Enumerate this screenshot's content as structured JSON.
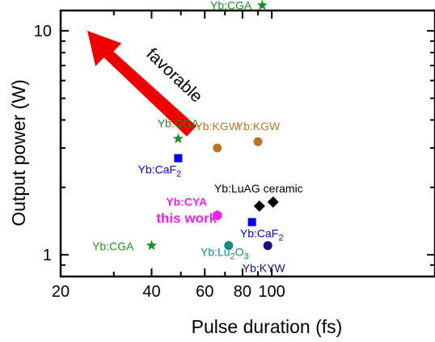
{
  "chart_data": {
    "type": "scatter",
    "xlabel": "Pulse duration (fs)",
    "ylabel": "Output power (W)",
    "xscale": "log",
    "yscale": "log",
    "xlim": [
      20,
      105
    ],
    "ylim": [
      0.8,
      13.5
    ],
    "xticks": [
      "20",
      "40",
      "60",
      "80",
      "100"
    ],
    "yticks": [
      "1",
      "10"
    ],
    "annotation": {
      "text": "favorable"
    },
    "points": [
      {
        "label": "Yb:CGA",
        "sub": "",
        "x": 40,
        "y": 1.1,
        "marker": "star",
        "color": "#1f8f1f"
      },
      {
        "label": "Yb:CGA",
        "sub": "",
        "x": 49,
        "y": 3.3,
        "marker": "star",
        "color": "#1f8f1f"
      },
      {
        "label": "Yb:CGA",
        "sub": "",
        "x": 93,
        "y": 13.0,
        "marker": "star",
        "color": "#1f8f1f"
      },
      {
        "label": "Yb:CaF",
        "sub": "2",
        "x": 49,
        "y": 2.7,
        "marker": "square",
        "color": "#0000ee"
      },
      {
        "label": "Yb:CaF",
        "sub": "2",
        "x": 86,
        "y": 1.4,
        "marker": "square",
        "color": "#0000ee"
      },
      {
        "label": "Yb:KGW",
        "sub": "",
        "x": 66,
        "y": 3.0,
        "marker": "circle",
        "color": "#b8762a"
      },
      {
        "label": "Yb:KGW",
        "sub": "",
        "x": 90,
        "y": 3.2,
        "marker": "circle",
        "color": "#b8762a"
      },
      {
        "label": "Yb:Lu",
        "sub": "2",
        "x": 72,
        "y": 1.1,
        "marker": "circle",
        "color": "#128a8a"
      },
      {
        "label": "Yb:KYW",
        "sub": "",
        "x": 97,
        "y": 1.1,
        "marker": "circle",
        "color": "#12127a"
      },
      {
        "label": "Yb:LuAG ceramic",
        "sub": "",
        "x": 91,
        "y": 1.65,
        "marker": "diamond",
        "color": "#000000"
      },
      {
        "label": "",
        "sub": "",
        "x": 101,
        "y": 1.72,
        "marker": "diamond",
        "color": "#000000"
      },
      {
        "label": "Yb:CYA",
        "sub": "",
        "label2": "this work",
        "x": 66,
        "y": 1.5,
        "marker": "hexagon",
        "color": "#ee22ee"
      }
    ]
  }
}
